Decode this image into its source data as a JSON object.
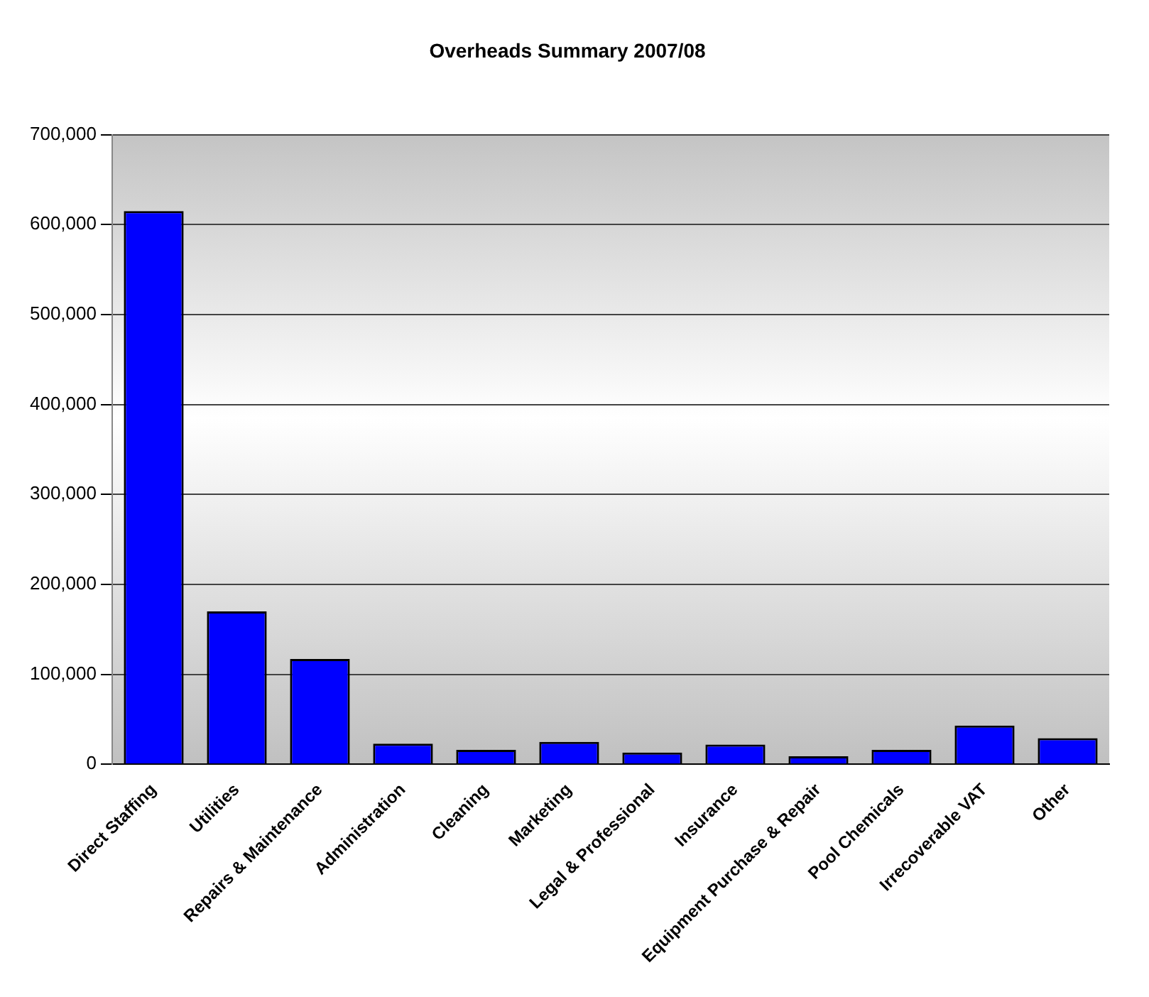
{
  "chart_data": {
    "type": "bar",
    "title": "Overheads Summary 2007/08",
    "categories": [
      "Direct Staffing",
      "Utilities",
      "Repairs & Maintenance",
      "Administration",
      "Cleaning",
      "Marketing",
      "Legal & Professional",
      "Insurance",
      "Equipment Purchase & Repair",
      "Pool Chemicals",
      "Irrecoverable VAT",
      "Other"
    ],
    "values": [
      615000,
      170000,
      117000,
      23000,
      16000,
      25000,
      13000,
      22000,
      9000,
      16000,
      43000,
      29000
    ],
    "color": "#0000ff",
    "ylim": [
      0,
      700000
    ],
    "yticks": [
      {
        "value": 0,
        "label": "0"
      },
      {
        "value": 100000,
        "label": "100,000"
      },
      {
        "value": 200000,
        "label": "200,000"
      },
      {
        "value": 300000,
        "label": "300,000"
      },
      {
        "value": 400000,
        "label": "400,000"
      },
      {
        "value": 500000,
        "label": "500,000"
      },
      {
        "value": 600000,
        "label": "600,000"
      },
      {
        "value": 700000,
        "label": "700,000"
      }
    ],
    "grid": "y",
    "legend": false
  }
}
